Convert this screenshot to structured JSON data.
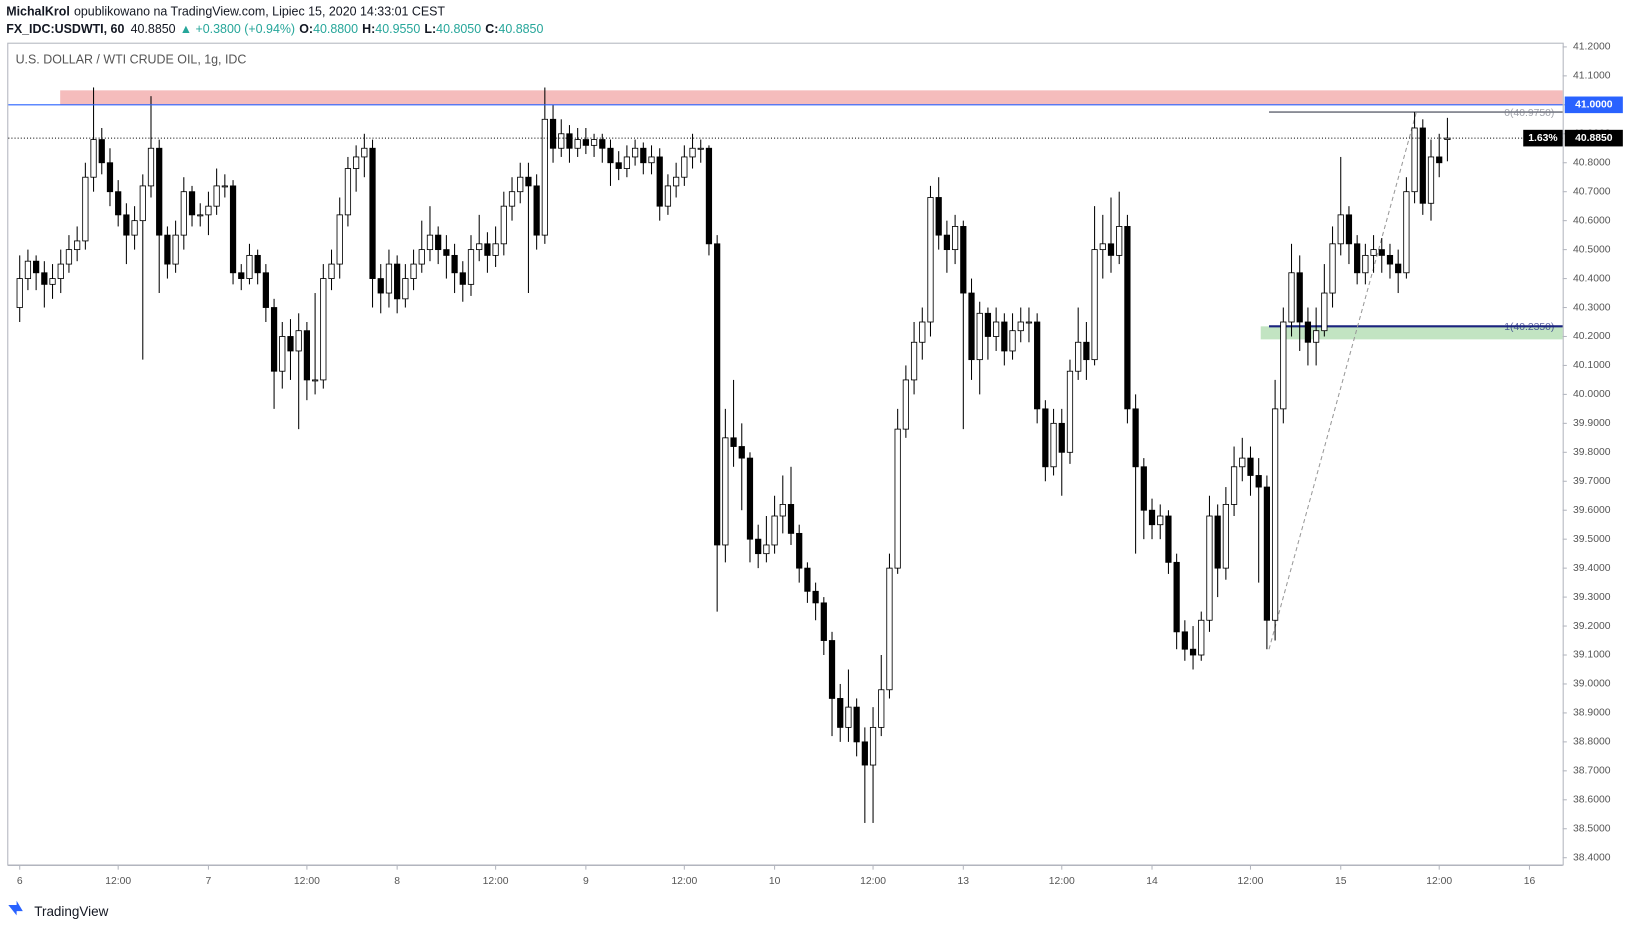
{
  "chart_data": {
    "type": "candlestick",
    "header": {
      "author": "MichalKrol",
      "published": "opublikowano na TradingView.com, Lipiec 15, 2020 14:33:01 CEST",
      "symbol": "FX_IDC:USDWTI, 60",
      "last": "40.8850",
      "change": "▲ +0.3800 (+0.94%)",
      "o_label": "O:",
      "o": "40.8800",
      "h_label": "H:",
      "h": "40.9550",
      "l_label": "L:",
      "l": "40.8050",
      "c_label": "C:",
      "c": "40.8850"
    },
    "title": "U.S. DOLLAR / WTI CRUDE OIL, 1g, IDC",
    "logo": "TradingView",
    "bull_color": "#ffffff",
    "bear_color": "#000000",
    "grid": false,
    "ylim": [
      38.373,
      41.211
    ],
    "yticks": [
      {
        "value": 38.4,
        "label": "38.4000"
      },
      {
        "value": 38.5,
        "label": "38.5000"
      },
      {
        "value": 38.6,
        "label": "38.6000"
      },
      {
        "value": 38.7,
        "label": "38.7000"
      },
      {
        "value": 38.8,
        "label": "38.8000"
      },
      {
        "value": 38.9,
        "label": "38.9000"
      },
      {
        "value": 39.0,
        "label": "39.0000"
      },
      {
        "value": 39.1,
        "label": "39.1000"
      },
      {
        "value": 39.2,
        "label": "39.2000"
      },
      {
        "value": 39.3,
        "label": "39.3000"
      },
      {
        "value": 39.4,
        "label": "39.4000"
      },
      {
        "value": 39.5,
        "label": "39.5000"
      },
      {
        "value": 39.6,
        "label": "39.6000"
      },
      {
        "value": 39.7,
        "label": "39.7000"
      },
      {
        "value": 39.8,
        "label": "39.8000"
      },
      {
        "value": 39.9,
        "label": "39.9000"
      },
      {
        "value": 40.0,
        "label": "40.0000"
      },
      {
        "value": 40.1,
        "label": "40.1000"
      },
      {
        "value": 40.2,
        "label": "40.2000"
      },
      {
        "value": 40.3,
        "label": "40.3000"
      },
      {
        "value": 40.4,
        "label": "40.4000"
      },
      {
        "value": 40.5,
        "label": "40.5000"
      },
      {
        "value": 40.6,
        "label": "40.6000"
      },
      {
        "value": 40.7,
        "label": "40.7000"
      },
      {
        "value": 40.8,
        "label": "40.8000"
      },
      {
        "value": 40.9,
        "label": "40.9000"
      },
      {
        "value": 41.0,
        "label": "41.0000"
      },
      {
        "value": 41.1,
        "label": "41.1000"
      },
      {
        "value": 41.2,
        "label": "41.2000"
      }
    ],
    "categories": [
      "6",
      null,
      null,
      null,
      null,
      null,
      null,
      null,
      null,
      null,
      null,
      null,
      "12:00",
      null,
      null,
      null,
      null,
      null,
      null,
      null,
      null,
      null,
      null,
      "7",
      null,
      null,
      null,
      null,
      null,
      null,
      null,
      null,
      null,
      null,
      null,
      "12:00",
      null,
      null,
      null,
      null,
      null,
      null,
      null,
      null,
      null,
      null,
      "8",
      null,
      null,
      null,
      null,
      null,
      null,
      null,
      null,
      null,
      null,
      null,
      "12:00",
      null,
      null,
      null,
      null,
      null,
      null,
      null,
      null,
      null,
      null,
      "9",
      null,
      null,
      null,
      null,
      null,
      null,
      null,
      null,
      null,
      null,
      null,
      "12:00",
      null,
      null,
      null,
      null,
      null,
      null,
      null,
      null,
      null,
      null,
      "10",
      null,
      null,
      null,
      null,
      null,
      null,
      null,
      null,
      null,
      null,
      null,
      "12:00",
      null,
      null,
      null,
      null,
      null,
      null,
      null,
      null,
      null,
      null,
      "13",
      null,
      null,
      null,
      null,
      null,
      null,
      null,
      null,
      null,
      null,
      null,
      "12:00",
      null,
      null,
      null,
      null,
      null,
      null,
      null,
      null,
      null,
      null,
      "14",
      null,
      null,
      null,
      null,
      null,
      null,
      null,
      null,
      null,
      null,
      null,
      "12:00",
      null,
      null,
      null,
      null,
      null,
      null,
      null,
      null,
      null,
      null,
      "15",
      null,
      null,
      null,
      null,
      null,
      null,
      null,
      null,
      null,
      null,
      null,
      "12:00",
      null,
      null,
      null,
      null,
      null,
      null,
      null,
      null,
      null,
      null,
      "16"
    ],
    "ohlc": [
      [
        40.3,
        40.48,
        40.25,
        40.4
      ],
      [
        40.4,
        40.5,
        40.36,
        40.46
      ],
      [
        40.46,
        40.48,
        40.36,
        40.42
      ],
      [
        40.42,
        40.46,
        40.3,
        40.38
      ],
      [
        40.38,
        40.45,
        40.33,
        40.4
      ],
      [
        40.4,
        40.5,
        40.35,
        40.45
      ],
      [
        40.45,
        40.55,
        40.42,
        40.5
      ],
      [
        40.5,
        40.58,
        40.46,
        40.53
      ],
      [
        40.53,
        40.8,
        40.5,
        40.75
      ],
      [
        40.75,
        41.06,
        40.7,
        40.88
      ],
      [
        40.88,
        40.92,
        40.76,
        40.8
      ],
      [
        40.8,
        40.85,
        40.65,
        40.7
      ],
      [
        40.7,
        40.74,
        40.58,
        40.62
      ],
      [
        40.62,
        40.66,
        40.45,
        40.55
      ],
      [
        40.55,
        40.65,
        40.5,
        40.6
      ],
      [
        40.6,
        40.76,
        40.12,
        40.72
      ],
      [
        40.72,
        41.03,
        40.68,
        40.85
      ],
      [
        40.85,
        40.88,
        40.35,
        40.55
      ],
      [
        40.55,
        40.58,
        40.4,
        40.45
      ],
      [
        40.45,
        40.6,
        40.42,
        40.55
      ],
      [
        40.55,
        40.75,
        40.5,
        40.7
      ],
      [
        40.7,
        40.72,
        40.58,
        40.62
      ],
      [
        40.62,
        40.66,
        40.58,
        40.62
      ],
      [
        40.62,
        40.7,
        40.55,
        40.65
      ],
      [
        40.65,
        40.78,
        40.62,
        40.72
      ],
      [
        40.72,
        40.76,
        40.68,
        40.72
      ],
      [
        40.72,
        40.74,
        40.38,
        40.42
      ],
      [
        40.42,
        40.45,
        40.36,
        40.4
      ],
      [
        40.4,
        40.52,
        40.38,
        40.48
      ],
      [
        40.48,
        40.5,
        40.38,
        40.42
      ],
      [
        40.42,
        40.45,
        40.25,
        40.3
      ],
      [
        40.3,
        40.33,
        39.95,
        40.08
      ],
      [
        40.08,
        40.25,
        40.02,
        40.2
      ],
      [
        40.2,
        40.26,
        40.05,
        40.15
      ],
      [
        40.15,
        40.28,
        39.88,
        40.22
      ],
      [
        40.22,
        40.25,
        39.98,
        40.05
      ],
      [
        40.05,
        40.35,
        40.0,
        40.05
      ],
      [
        40.05,
        40.45,
        40.02,
        40.4
      ],
      [
        40.4,
        40.5,
        40.36,
        40.45
      ],
      [
        40.45,
        40.68,
        40.4,
        40.62
      ],
      [
        40.62,
        40.82,
        40.58,
        40.78
      ],
      [
        40.78,
        40.86,
        40.7,
        40.82
      ],
      [
        40.82,
        40.9,
        40.75,
        40.85
      ],
      [
        40.85,
        40.88,
        40.3,
        40.4
      ],
      [
        40.4,
        40.45,
        40.28,
        40.35
      ],
      [
        40.35,
        40.5,
        40.3,
        40.45
      ],
      [
        40.45,
        40.48,
        40.28,
        40.33
      ],
      [
        40.33,
        40.45,
        40.3,
        40.4
      ],
      [
        40.4,
        40.5,
        40.36,
        40.45
      ],
      [
        40.45,
        40.6,
        40.42,
        40.5
      ],
      [
        40.5,
        40.65,
        40.46,
        40.55
      ],
      [
        40.55,
        40.58,
        40.45,
        40.5
      ],
      [
        40.5,
        40.55,
        40.4,
        40.48
      ],
      [
        40.48,
        40.52,
        40.35,
        40.42
      ],
      [
        40.42,
        40.46,
        40.32,
        40.38
      ],
      [
        40.38,
        40.55,
        40.34,
        40.5
      ],
      [
        40.5,
        40.62,
        40.46,
        40.52
      ],
      [
        40.52,
        40.56,
        40.42,
        40.48
      ],
      [
        40.48,
        40.58,
        40.44,
        40.52
      ],
      [
        40.52,
        40.7,
        40.48,
        40.65
      ],
      [
        40.65,
        40.75,
        40.6,
        40.7
      ],
      [
        40.7,
        40.8,
        40.66,
        40.75
      ],
      [
        40.75,
        40.8,
        40.35,
        40.72
      ],
      [
        40.72,
        40.76,
        40.5,
        40.55
      ],
      [
        40.55,
        41.06,
        40.52,
        40.95
      ],
      [
        40.95,
        41.0,
        40.8,
        40.85
      ],
      [
        40.85,
        40.95,
        40.82,
        40.9
      ],
      [
        40.9,
        40.93,
        40.8,
        40.85
      ],
      [
        40.85,
        40.92,
        40.82,
        40.88
      ],
      [
        40.88,
        40.92,
        40.83,
        40.86
      ],
      [
        40.86,
        40.9,
        40.82,
        40.88
      ],
      [
        40.88,
        40.9,
        40.8,
        40.85
      ],
      [
        40.85,
        40.88,
        40.72,
        40.8
      ],
      [
        40.8,
        40.84,
        40.74,
        40.78
      ],
      [
        40.78,
        40.86,
        40.75,
        40.82
      ],
      [
        40.82,
        40.88,
        40.79,
        40.85
      ],
      [
        40.85,
        40.87,
        40.76,
        40.8
      ],
      [
        40.8,
        40.86,
        40.76,
        40.82
      ],
      [
        40.82,
        40.85,
        40.6,
        40.65
      ],
      [
        40.65,
        40.76,
        40.62,
        40.72
      ],
      [
        40.72,
        40.8,
        40.68,
        40.75
      ],
      [
        40.75,
        40.86,
        40.72,
        40.82
      ],
      [
        40.82,
        40.9,
        40.78,
        40.85
      ],
      [
        40.85,
        40.88,
        40.8,
        40.85
      ],
      [
        40.85,
        40.86,
        40.48,
        40.52
      ],
      [
        40.52,
        40.55,
        39.25,
        39.48
      ],
      [
        39.48,
        39.95,
        39.42,
        39.85
      ],
      [
        39.85,
        40.05,
        39.75,
        39.82
      ],
      [
        39.82,
        39.9,
        39.6,
        39.78
      ],
      [
        39.78,
        39.8,
        39.42,
        39.5
      ],
      [
        39.5,
        39.55,
        39.4,
        39.45
      ],
      [
        39.45,
        39.58,
        39.42,
        39.48
      ],
      [
        39.48,
        39.65,
        39.45,
        39.58
      ],
      [
        39.58,
        39.72,
        39.52,
        39.62
      ],
      [
        39.62,
        39.75,
        39.48,
        39.52
      ],
      [
        39.52,
        39.55,
        39.35,
        39.4
      ],
      [
        39.4,
        39.42,
        39.28,
        39.32
      ],
      [
        39.32,
        39.35,
        39.22,
        39.28
      ],
      [
        39.28,
        39.3,
        39.1,
        39.15
      ],
      [
        39.15,
        39.18,
        38.82,
        38.95
      ],
      [
        38.95,
        39.0,
        38.8,
        38.85
      ],
      [
        38.85,
        39.05,
        38.8,
        38.92
      ],
      [
        38.92,
        38.95,
        38.75,
        38.8
      ],
      [
        38.8,
        38.85,
        38.52,
        38.72
      ],
      [
        38.72,
        38.92,
        38.52,
        38.85
      ],
      [
        38.85,
        39.1,
        38.82,
        38.98
      ],
      [
        38.98,
        39.45,
        38.95,
        39.4
      ],
      [
        39.4,
        39.95,
        39.38,
        39.88
      ],
      [
        39.88,
        40.1,
        39.85,
        40.05
      ],
      [
        40.05,
        40.25,
        40.0,
        40.18
      ],
      [
        40.18,
        40.3,
        40.12,
        40.25
      ],
      [
        40.25,
        40.72,
        40.2,
        40.68
      ],
      [
        40.68,
        40.75,
        40.5,
        40.55
      ],
      [
        40.55,
        40.6,
        40.42,
        40.5
      ],
      [
        40.5,
        40.62,
        40.45,
        40.58
      ],
      [
        40.58,
        40.6,
        39.88,
        40.35
      ],
      [
        40.35,
        40.4,
        40.05,
        40.12
      ],
      [
        40.12,
        40.32,
        40.0,
        40.28
      ],
      [
        40.28,
        40.3,
        40.12,
        40.2
      ],
      [
        40.2,
        40.3,
        40.15,
        40.25
      ],
      [
        40.25,
        40.28,
        40.1,
        40.15
      ],
      [
        40.15,
        40.28,
        40.12,
        40.22
      ],
      [
        40.22,
        40.3,
        40.18,
        40.25
      ],
      [
        40.25,
        40.3,
        40.18,
        40.25
      ],
      [
        40.25,
        40.28,
        39.9,
        39.95
      ],
      [
        39.95,
        39.98,
        39.7,
        39.75
      ],
      [
        39.75,
        39.95,
        39.72,
        39.9
      ],
      [
        39.9,
        39.95,
        39.65,
        39.8
      ],
      [
        39.8,
        40.12,
        39.76,
        40.08
      ],
      [
        40.08,
        40.3,
        40.05,
        40.18
      ],
      [
        40.18,
        40.25,
        40.05,
        40.12
      ],
      [
        40.12,
        40.65,
        40.1,
        40.5
      ],
      [
        40.5,
        40.62,
        40.4,
        40.52
      ],
      [
        40.52,
        40.68,
        40.42,
        40.48
      ],
      [
        40.48,
        40.7,
        40.45,
        40.58
      ],
      [
        40.58,
        40.62,
        39.9,
        39.95
      ],
      [
        39.95,
        40.0,
        39.45,
        39.75
      ],
      [
        39.75,
        39.78,
        39.5,
        39.6
      ],
      [
        39.6,
        39.64,
        39.5,
        39.55
      ],
      [
        39.55,
        39.62,
        39.5,
        39.58
      ],
      [
        39.58,
        39.6,
        39.38,
        39.42
      ],
      [
        39.42,
        39.45,
        39.12,
        39.18
      ],
      [
        39.18,
        39.22,
        39.08,
        39.12
      ],
      [
        39.12,
        39.2,
        39.05,
        39.1
      ],
      [
        39.1,
        39.25,
        39.08,
        39.22
      ],
      [
        39.22,
        39.65,
        39.18,
        39.58
      ],
      [
        39.58,
        39.62,
        39.3,
        39.4
      ],
      [
        39.4,
        39.68,
        39.36,
        39.62
      ],
      [
        39.62,
        39.82,
        39.58,
        39.75
      ],
      [
        39.75,
        39.85,
        39.7,
        39.78
      ],
      [
        39.78,
        39.82,
        39.65,
        39.72
      ],
      [
        39.72,
        39.78,
        39.35,
        39.68
      ],
      [
        39.68,
        39.72,
        39.12,
        39.22
      ],
      [
        39.22,
        40.05,
        39.15,
        39.95
      ],
      [
        39.95,
        40.3,
        39.9,
        40.25
      ],
      [
        40.25,
        40.52,
        40.2,
        40.42
      ],
      [
        40.42,
        40.48,
        40.15,
        40.25
      ],
      [
        40.25,
        40.3,
        40.1,
        40.18
      ],
      [
        40.18,
        40.3,
        40.1,
        40.22
      ],
      [
        40.22,
        40.45,
        40.2,
        40.35
      ],
      [
        40.35,
        40.58,
        40.3,
        40.52
      ],
      [
        40.52,
        40.82,
        40.48,
        40.62
      ],
      [
        40.62,
        40.65,
        40.45,
        40.52
      ],
      [
        40.52,
        40.55,
        40.38,
        40.42
      ],
      [
        40.42,
        40.52,
        40.38,
        40.48
      ],
      [
        40.48,
        40.55,
        40.42,
        40.5
      ],
      [
        40.5,
        40.54,
        40.42,
        40.48
      ],
      [
        40.48,
        40.52,
        40.4,
        40.45
      ],
      [
        40.45,
        40.5,
        40.35,
        40.42
      ],
      [
        40.42,
        40.75,
        40.4,
        40.7
      ],
      [
        40.7,
        40.975,
        40.66,
        40.92
      ],
      [
        40.92,
        40.95,
        40.62,
        40.66
      ],
      [
        40.66,
        40.88,
        40.6,
        40.82
      ],
      [
        40.82,
        40.9,
        40.75,
        40.8
      ],
      [
        40.88,
        40.955,
        40.805,
        40.885
      ],
      null,
      null,
      null,
      null,
      null,
      null,
      null,
      null,
      null,
      null
    ],
    "zones": [
      {
        "color": "#f4b8b8",
        "range": [
          41.0,
          41.05
        ]
      },
      {
        "color": "#bfe3bf",
        "range": [
          40.19,
          40.235
        ]
      }
    ],
    "levels": [
      {
        "value": 41.0,
        "label": "41.0000",
        "color": "#2962ff",
        "style": "solid"
      },
      {
        "value": 40.885,
        "label": "40.8850",
        "change": "1.63%",
        "color": "#000000",
        "style": "dotted"
      }
    ],
    "fib": [
      {
        "value": 40.975,
        "label": "0(40.9750)",
        "color": "#787b86"
      },
      {
        "value": 40.235,
        "label": "1(40.2350)",
        "color": "#1a237e"
      }
    ],
    "trend_line": [
      39.12,
      40.975
    ]
  }
}
